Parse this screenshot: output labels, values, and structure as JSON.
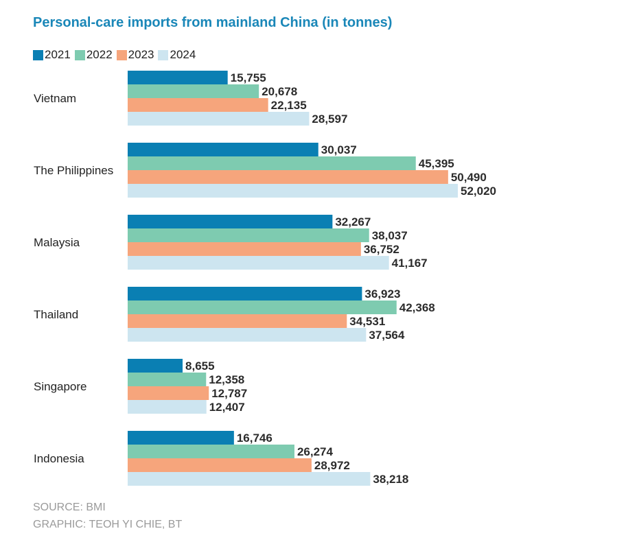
{
  "colors": {
    "title": "#1a87b8",
    "footer": "#9a9a9a"
  },
  "chart_data": {
    "type": "bar",
    "orientation": "horizontal",
    "title": "Personal-care imports from mainland China (in tonnes)",
    "categories": [
      "Vietnam",
      "The Philippines",
      "Malaysia",
      "Thailand",
      "Singapore",
      "Indonesia"
    ],
    "series": [
      {
        "name": "2021",
        "color": "#0a7fb3",
        "values": [
          15755,
          30037,
          32267,
          36923,
          8655,
          16746
        ]
      },
      {
        "name": "2022",
        "color": "#7ecbb0",
        "values": [
          20678,
          45395,
          38037,
          42368,
          12358,
          26274
        ]
      },
      {
        "name": "2023",
        "color": "#f6a57c",
        "values": [
          22135,
          50490,
          36752,
          34531,
          12787,
          28972
        ]
      },
      {
        "name": "2024",
        "color": "#cde5f0",
        "values": [
          28597,
          52020,
          41167,
          37564,
          12407,
          38218
        ]
      }
    ],
    "xlim": [
      0,
      60000
    ],
    "grid": false,
    "legend_position": "top-left",
    "data_labels": true
  },
  "footer": {
    "source": "SOURCE: BMI",
    "credit": "GRAPHIC: TEOH YI CHIE, BT"
  }
}
